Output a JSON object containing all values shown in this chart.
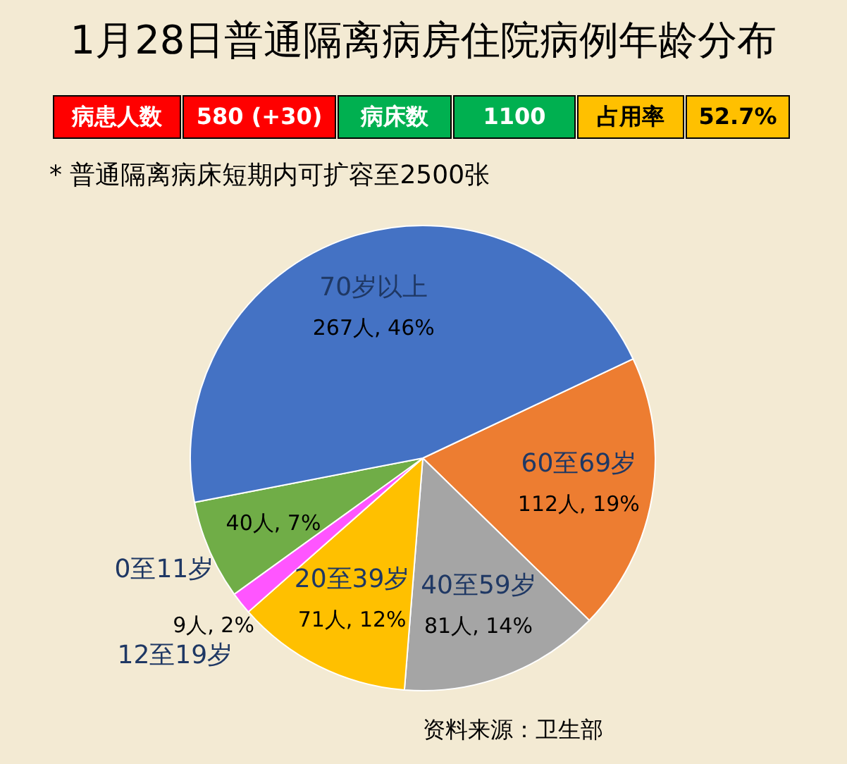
{
  "chart_data": {
    "type": "pie",
    "title": "1月28日普通隔离病房住院病例年龄分布",
    "categories": [
      "60至69岁",
      "40至59岁",
      "20至39岁",
      "12至19岁",
      "0至11岁",
      "70岁以上"
    ],
    "values": [
      112,
      81,
      71,
      9,
      40,
      267
    ],
    "colors": [
      "#ed7d31",
      "#a5a5a5",
      "#ffc000",
      "#ff55ff",
      "#70ad47",
      "#4472c4"
    ],
    "value_labels": [
      "112人, 19%",
      "81人, 14%",
      "71人, 12%",
      "9人, 2%",
      "40人, 7%",
      "267人, 46%"
    ],
    "annotations": [
      "病患人数",
      "580 (+30)",
      "病床数",
      "1100",
      "占用率",
      "52.7%",
      "* 普通隔离病床短期内可扩容至2500张",
      "资料来源：卫生部"
    ]
  }
}
